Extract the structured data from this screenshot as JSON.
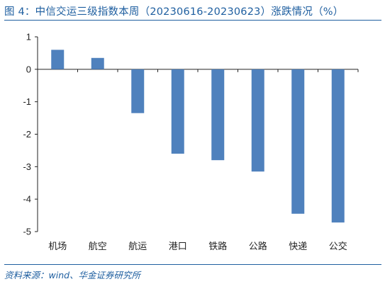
{
  "page": {
    "title": "图 4：中信交运三级指数本周（20230616-20230623）涨跌情况（%）",
    "source": "资料来源：wind、华金证券研究所"
  },
  "colors": {
    "bar": "#4f81bd",
    "accent": "#1f5fa0"
  },
  "chart_data": {
    "type": "bar",
    "categories": [
      "机场",
      "航空",
      "航运",
      "港口",
      "铁路",
      "公路",
      "快递",
      "公交"
    ],
    "values": [
      0.6,
      0.35,
      -1.35,
      -2.6,
      -2.8,
      -3.15,
      -4.45,
      -4.72
    ],
    "xlabel": "",
    "ylabel": "",
    "ylim": [
      -5,
      1
    ],
    "yticks": [
      "1",
      "0",
      "-1",
      "-2",
      "-3",
      "-4",
      "-5"
    ],
    "grid": false,
    "legend": "none"
  }
}
